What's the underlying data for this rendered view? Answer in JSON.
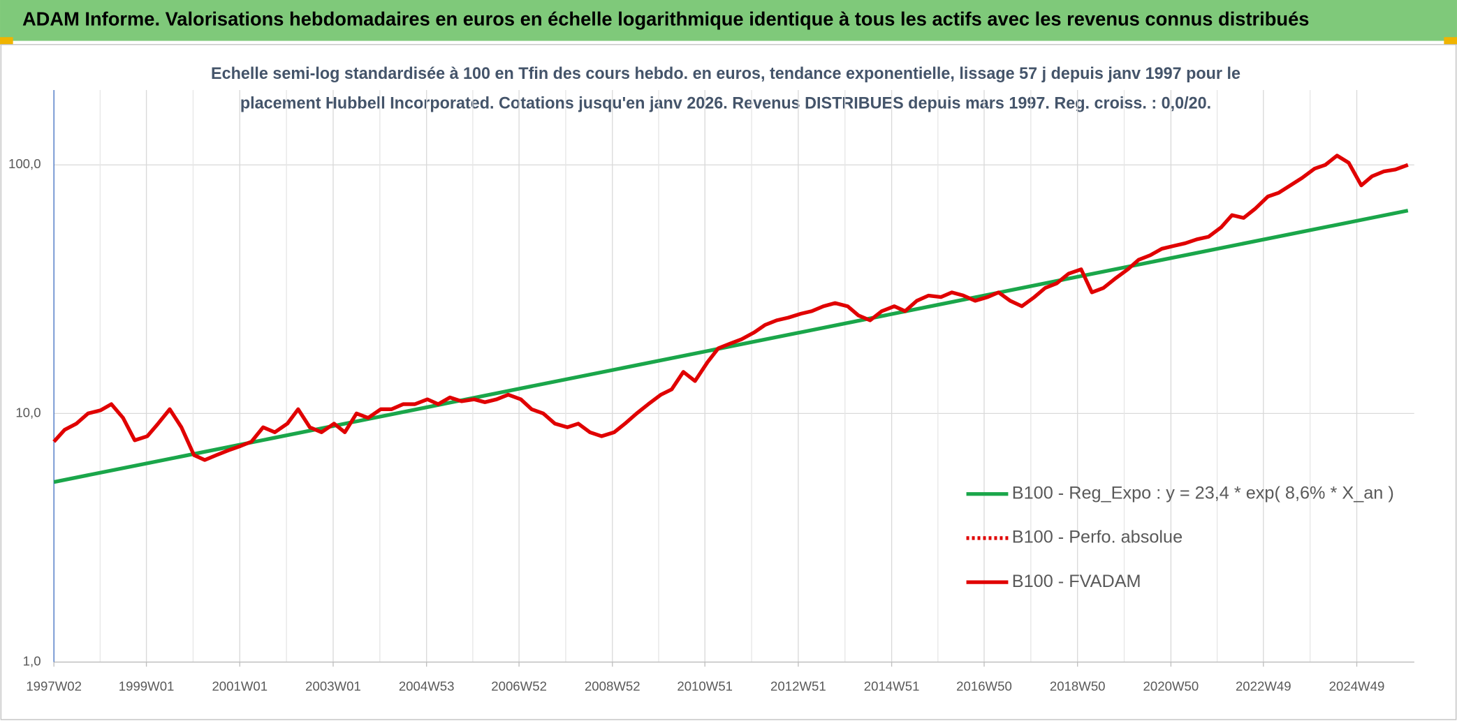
{
  "chart_data": {
    "type": "line",
    "title": "ADAM Informe. Valorisations hebdomadaires en euros en échelle logarithmique identique à tous les actifs avec les revenus connus distribués",
    "subtitle": [
      "Echelle semi-log standardisée à 100 en Tfin des cours hebdo. en euros, tendance exponentielle, lissage 57 j depuis janv 1997 pour le",
      "placement Hubbell Incorporated. Cotations jusqu'en janv 2026. Revenus DISTRIBUES depuis mars 1997. Reg. croiss. : 0,0/20."
    ],
    "log_scale": true,
    "grid": true,
    "ylim": [
      1,
      200
    ],
    "yticks": [
      {
        "value": 1,
        "label": "1,0"
      },
      {
        "value": 10,
        "label": "10,0"
      },
      {
        "value": 100,
        "label": "100,0"
      }
    ],
    "xlim": [
      "1997W02",
      "2026W09"
    ],
    "xticks": [
      "1997W02",
      "1999W01",
      "2001W01",
      "2003W01",
      "2004W53",
      "2006W52",
      "2008W52",
      "2010W51",
      "2012W51",
      "2014W51",
      "2016W50",
      "2018W50",
      "2020W50",
      "2022W49",
      "2024W49"
    ],
    "series": [
      {
        "name": "B100 - Reg_Expo : y = 23,4 * exp( 8,6% *  X_an )",
        "color": "#1aa64a",
        "style": "solid",
        "x": [
          "1997W02",
          "2026W02"
        ],
        "values": [
          5.3,
          65.5
        ]
      },
      {
        "name": "B100 - Perfo. absolue",
        "color": "#e00000",
        "style": "dotted"
      },
      {
        "name": "B100 - FVADAM",
        "color": "#e00000",
        "style": "solid",
        "x": [
          "1997W02",
          "1997W14",
          "1997W27",
          "1997W40",
          "1998W02",
          "1998W14",
          "1998W27",
          "1998W40",
          "1999W02",
          "1999W14",
          "1999W27",
          "1999W40",
          "2000W02",
          "2000W14",
          "2000W27",
          "2000W40",
          "2001W02",
          "2001W14",
          "2001W27",
          "2001W40",
          "2002W02",
          "2002W14",
          "2002W27",
          "2002W40",
          "2003W02",
          "2003W14",
          "2003W27",
          "2003W40",
          "2004W02",
          "2004W14",
          "2004W27",
          "2004W40",
          "2005W02",
          "2005W14",
          "2005W27",
          "2005W40",
          "2006W02",
          "2006W14",
          "2006W27",
          "2006W40",
          "2007W02",
          "2007W14",
          "2007W27",
          "2007W40",
          "2008W02",
          "2008W14",
          "2008W27",
          "2008W40",
          "2009W02",
          "2009W14",
          "2009W27",
          "2009W40",
          "2010W02",
          "2010W14",
          "2010W27",
          "2010W40",
          "2011W02",
          "2011W14",
          "2011W27",
          "2011W40",
          "2012W02",
          "2012W14",
          "2012W27",
          "2012W40",
          "2013W02",
          "2013W14",
          "2013W27",
          "2013W40",
          "2014W02",
          "2014W14",
          "2014W27",
          "2014W40",
          "2015W02",
          "2015W14",
          "2015W27",
          "2015W40",
          "2016W02",
          "2016W14",
          "2016W27",
          "2016W40",
          "2017W02",
          "2017W14",
          "2017W27",
          "2017W40",
          "2018W02",
          "2018W14",
          "2018W27",
          "2018W40",
          "2019W02",
          "2019W14",
          "2019W27",
          "2019W40",
          "2020W02",
          "2020W14",
          "2020W27",
          "2020W40",
          "2021W02",
          "2021W14",
          "2021W27",
          "2021W40",
          "2022W02",
          "2022W14",
          "2022W27",
          "2022W40",
          "2023W02",
          "2023W14",
          "2023W27",
          "2023W40",
          "2024W02",
          "2024W14",
          "2024W27",
          "2024W40",
          "2025W02",
          "2025W14",
          "2025W27",
          "2025W40",
          "2026W02"
        ],
        "values": [
          7.7,
          8.6,
          9.1,
          10.0,
          10.3,
          10.9,
          9.6,
          7.8,
          8.1,
          9.1,
          10.4,
          8.8,
          6.8,
          6.5,
          6.8,
          7.1,
          7.4,
          7.7,
          8.8,
          8.4,
          9.1,
          10.4,
          8.8,
          8.4,
          9.1,
          8.4,
          10.0,
          9.6,
          10.4,
          10.4,
          10.9,
          10.9,
          11.4,
          10.9,
          11.6,
          11.2,
          11.4,
          11.1,
          11.4,
          11.9,
          11.4,
          10.4,
          10.0,
          9.1,
          8.8,
          9.1,
          8.4,
          8.1,
          8.4,
          9.1,
          10.0,
          10.9,
          11.9,
          12.5,
          14.7,
          13.5,
          16.1,
          18.3,
          19.1,
          19.9,
          21.2,
          22.7,
          23.7,
          24.3,
          25.2,
          25.8,
          27.0,
          27.8,
          27.0,
          24.8,
          23.7,
          25.8,
          27.0,
          25.8,
          28.4,
          29.8,
          29.4,
          30.7,
          29.8,
          28.4,
          29.4,
          30.7,
          28.4,
          27.0,
          29.4,
          32.0,
          33.4,
          36.5,
          38.0,
          30.7,
          32.0,
          34.9,
          38.0,
          41.5,
          43.3,
          46.0,
          47.3,
          48.4,
          50.2,
          51.4,
          56.1,
          62.8,
          61.2,
          66.7,
          74.6,
          77.2,
          82.7,
          88.6,
          96.6,
          100,
          109,
          102,
          82.7,
          90,
          94.1,
          95.8,
          100
        ]
      }
    ]
  }
}
